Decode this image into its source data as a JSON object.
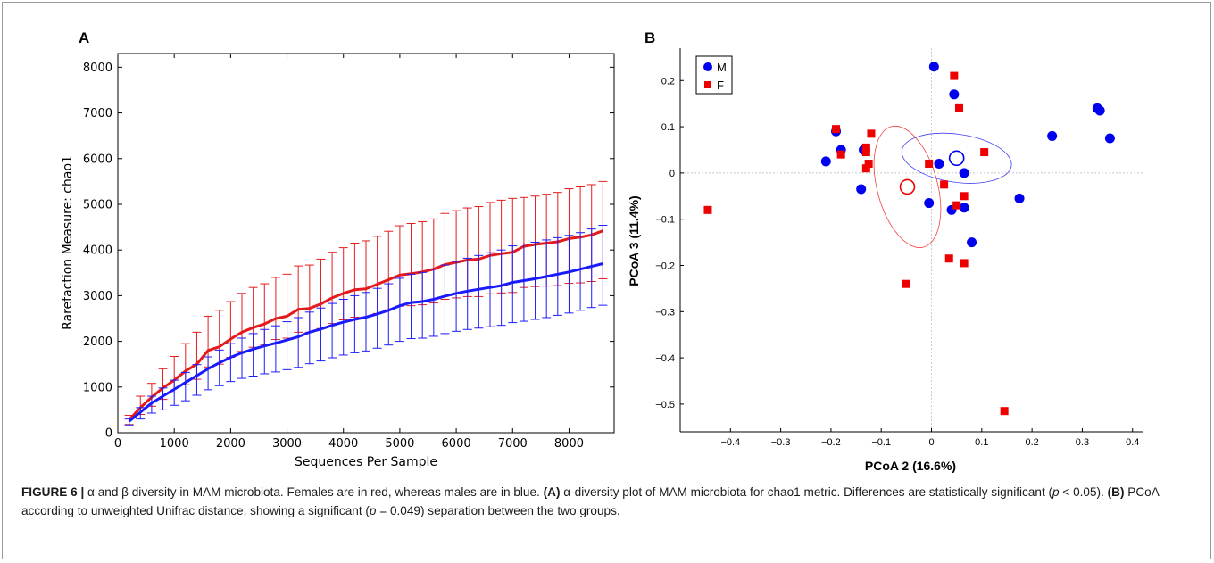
{
  "chart_data": [
    {
      "panel": "A",
      "type": "line",
      "xlabel": "Sequences Per Sample",
      "ylabel": "Rarefaction Measure: chao1",
      "xlim": [
        0,
        8800
      ],
      "ylim": [
        0,
        8300
      ],
      "xticks": [
        0,
        1000,
        2000,
        3000,
        4000,
        5000,
        6000,
        7000,
        8000
      ],
      "yticks": [
        0,
        1000,
        2000,
        3000,
        4000,
        5000,
        6000,
        7000,
        8000
      ],
      "x": [
        200,
        400,
        600,
        800,
        1000,
        1200,
        1400,
        1600,
        1800,
        2000,
        2200,
        2400,
        2600,
        2800,
        3000,
        3200,
        3400,
        3600,
        3800,
        4000,
        4200,
        4400,
        4600,
        4800,
        5000,
        5200,
        5400,
        5600,
        5800,
        6000,
        6200,
        6400,
        6600,
        6800,
        7000,
        7200,
        7400,
        7600,
        7800,
        8000,
        8200,
        8400,
        8600
      ],
      "series": [
        {
          "color": "#e41a1c",
          "values": [
            280,
            550,
            780,
            980,
            1150,
            1350,
            1500,
            1800,
            1880,
            2050,
            2200,
            2300,
            2380,
            2500,
            2550,
            2700,
            2720,
            2820,
            2950,
            3050,
            3130,
            3150,
            3250,
            3350,
            3450,
            3480,
            3520,
            3580,
            3680,
            3730,
            3780,
            3800,
            3880,
            3920,
            3950,
            4080,
            4120,
            4150,
            4180,
            4250,
            4280,
            4330,
            4420
          ],
          "err_plus": [
            100,
            250,
            300,
            420,
            520,
            600,
            700,
            750,
            800,
            820,
            850,
            880,
            880,
            900,
            920,
            950,
            950,
            980,
            1000,
            1000,
            1020,
            1050,
            1050,
            1060,
            1080,
            1100,
            1100,
            1100,
            1120,
            1130,
            1140,
            1150,
            1160,
            1170,
            1180,
            1070,
            1060,
            1070,
            1080,
            1090,
            1100,
            1100,
            1080
          ],
          "err_minus": [
            100,
            150,
            200,
            250,
            280,
            300,
            330,
            360,
            380,
            400,
            420,
            430,
            450,
            460,
            480,
            500,
            520,
            540,
            560,
            580,
            600,
            620,
            640,
            660,
            680,
            700,
            720,
            740,
            760,
            780,
            800,
            820,
            840,
            860,
            880,
            900,
            920,
            940,
            960,
            980,
            1000,
            1020,
            1050
          ]
        },
        {
          "color": "#1a1aff",
          "values": [
            250,
            450,
            650,
            800,
            950,
            1100,
            1250,
            1400,
            1530,
            1650,
            1750,
            1830,
            1900,
            1960,
            2030,
            2100,
            2200,
            2270,
            2350,
            2420,
            2480,
            2530,
            2600,
            2680,
            2780,
            2850,
            2870,
            2920,
            2990,
            3050,
            3100,
            3140,
            3180,
            3220,
            3290,
            3330,
            3370,
            3420,
            3470,
            3520,
            3580,
            3640,
            3700
          ],
          "err_plus": [
            50,
            100,
            150,
            180,
            200,
            220,
            240,
            260,
            280,
            300,
            320,
            340,
            360,
            380,
            400,
            420,
            440,
            460,
            480,
            500,
            520,
            540,
            560,
            580,
            600,
            620,
            640,
            660,
            680,
            700,
            720,
            740,
            760,
            780,
            800,
            800,
            800,
            800,
            800,
            800,
            800,
            820,
            840
          ],
          "err_minus": [
            80,
            150,
            220,
            300,
            350,
            400,
            430,
            460,
            500,
            530,
            560,
            590,
            610,
            630,
            650,
            670,
            690,
            700,
            710,
            720,
            730,
            740,
            750,
            760,
            780,
            790,
            800,
            810,
            820,
            830,
            840,
            850,
            860,
            870,
            880,
            890,
            890,
            900,
            900,
            900,
            900,
            900,
            910
          ]
        }
      ]
    },
    {
      "panel": "B",
      "type": "scatter",
      "xlabel": "PCoA 2 (16.6%)",
      "ylabel": "PCoA 3 (11.4%)",
      "xlim": [
        -0.5,
        0.42
      ],
      "ylim": [
        -0.56,
        0.27
      ],
      "xticks": [
        -0.4,
        -0.3,
        -0.2,
        -0.1,
        0,
        0.1,
        0.2,
        0.3,
        0.4
      ],
      "yticks": [
        0.2,
        0.1,
        0,
        -0.1,
        -0.2,
        -0.3,
        -0.4,
        -0.5
      ],
      "legend_position": "top-left",
      "series": [
        {
          "name": "M",
          "color": "#0000ee",
          "marker": "circle",
          "points": [
            [
              0.005,
              0.23
            ],
            [
              0.045,
              0.17
            ],
            [
              0.33,
              0.14
            ],
            [
              0.335,
              0.135
            ],
            [
              0.355,
              0.075
            ],
            [
              0.24,
              0.08
            ],
            [
              -0.19,
              0.09
            ],
            [
              -0.18,
              0.05
            ],
            [
              -0.21,
              0.025
            ],
            [
              -0.135,
              0.05
            ],
            [
              0.015,
              0.02
            ],
            [
              0.065,
              0.0
            ],
            [
              -0.14,
              -0.035
            ],
            [
              -0.005,
              -0.065
            ],
            [
              0.04,
              -0.08
            ],
            [
              0.065,
              -0.075
            ],
            [
              0.175,
              -0.055
            ],
            [
              0.08,
              -0.15
            ]
          ],
          "centroid": [
            0.05,
            0.032
          ],
          "ellipse": {
            "rx": 0.11,
            "ry": 0.052,
            "angle_deg": 8
          }
        },
        {
          "name": "F",
          "color": "#ee0000",
          "marker": "square",
          "points": [
            [
              0.045,
              0.21
            ],
            [
              0.055,
              0.14
            ],
            [
              -0.19,
              0.095
            ],
            [
              -0.12,
              0.085
            ],
            [
              -0.13,
              0.055
            ],
            [
              -0.13,
              0.045
            ],
            [
              -0.18,
              0.04
            ],
            [
              -0.125,
              0.02
            ],
            [
              -0.13,
              0.01
            ],
            [
              -0.005,
              0.02
            ],
            [
              0.105,
              0.045
            ],
            [
              0.025,
              -0.025
            ],
            [
              0.065,
              -0.05
            ],
            [
              0.05,
              -0.07
            ],
            [
              -0.445,
              -0.08
            ],
            [
              0.035,
              -0.185
            ],
            [
              0.065,
              -0.195
            ],
            [
              -0.05,
              -0.24
            ],
            [
              0.145,
              -0.515
            ]
          ],
          "centroid": [
            -0.048,
            -0.03
          ],
          "ellipse": {
            "rx": 0.06,
            "ry": 0.135,
            "angle_deg": -15
          }
        }
      ]
    }
  ],
  "panels": {
    "a_label": "A",
    "b_label": "B",
    "a_xlabel": "Sequences Per Sample",
    "a_ylabel": "Rarefaction Measure: chao1",
    "b_xlabel": "PCoA 2 (16.6%)",
    "b_ylabel": "PCoA 3 (11.4%)",
    "legend_m": "M",
    "legend_f": "F"
  },
  "caption": {
    "figure_label": "FIGURE 6 |",
    "part1": " α and β diversity in MAM microbiota. Females are in red, whereas males are in blue. ",
    "a_ref": "(A)",
    "part2": " α-diversity plot of MAM microbiota for chao1 metric. Differences are statistically significant (",
    "p1": "p",
    "part3": " < 0.05). ",
    "b_ref": "(B)",
    "part4": " PCoA according to unweighted Unifrac distance, showing a significant (",
    "p2": "p",
    "part5": " = 0.049) separation between the two groups."
  }
}
